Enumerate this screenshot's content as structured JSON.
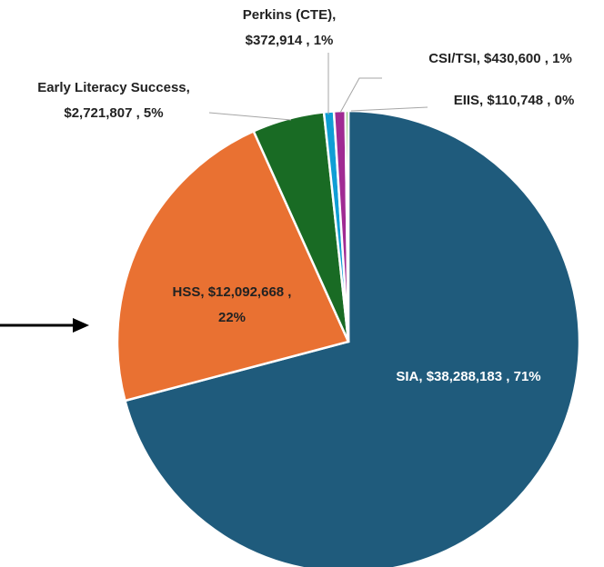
{
  "chart_data": {
    "type": "pie",
    "values": [
      38288183,
      12092668,
      2721807,
      372914,
      430600,
      110748
    ],
    "labels": [
      [
        "SIA, $38,288,183 , 71%"
      ],
      [
        "HSS, $12,092,668 ,",
        "22%"
      ],
      [
        "Early Literacy Success,",
        "$2,721,807 , 5%"
      ],
      [
        "Perkins (CTE),",
        "$372,914 , 1%"
      ],
      [
        "CSI/TSI, $430,600 , 1%"
      ],
      [
        "EIIS, $110,748 , 0%"
      ]
    ],
    "colors": [
      "#1f5b7c",
      "#e97132",
      "#196b24",
      "#0f9ed5",
      "#a02b93",
      "#4ea72e"
    ]
  }
}
